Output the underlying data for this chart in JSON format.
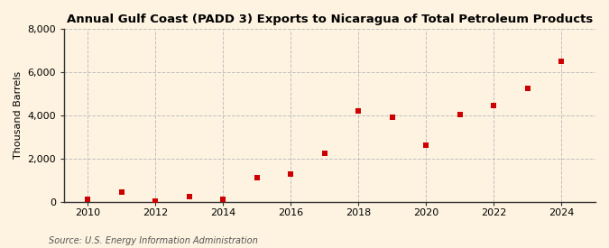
{
  "title": "Annual Gulf Coast (PADD 3) Exports to Nicaragua of Total Petroleum Products",
  "ylabel": "Thousand Barrels",
  "source": "Source: U.S. Energy Information Administration",
  "years": [
    2010,
    2011,
    2012,
    2013,
    2014,
    2015,
    2016,
    2017,
    2018,
    2019,
    2020,
    2021,
    2022,
    2023,
    2024
  ],
  "values": [
    100,
    450,
    50,
    250,
    100,
    1100,
    1300,
    2250,
    4200,
    3900,
    2600,
    4050,
    4450,
    5250,
    6500
  ],
  "marker_color": "#cc0000",
  "marker_size": 4,
  "background_color": "#fdf3e0",
  "grid_color": "#bbbbbb",
  "spine_color": "#333333",
  "ylim": [
    0,
    8000
  ],
  "yticks": [
    0,
    2000,
    4000,
    6000,
    8000
  ],
  "xticks": [
    2010,
    2012,
    2014,
    2016,
    2018,
    2020,
    2022,
    2024
  ],
  "xlim": [
    2009.3,
    2025.0
  ],
  "title_fontsize": 9.5,
  "label_fontsize": 8,
  "tick_fontsize": 8,
  "source_fontsize": 7
}
